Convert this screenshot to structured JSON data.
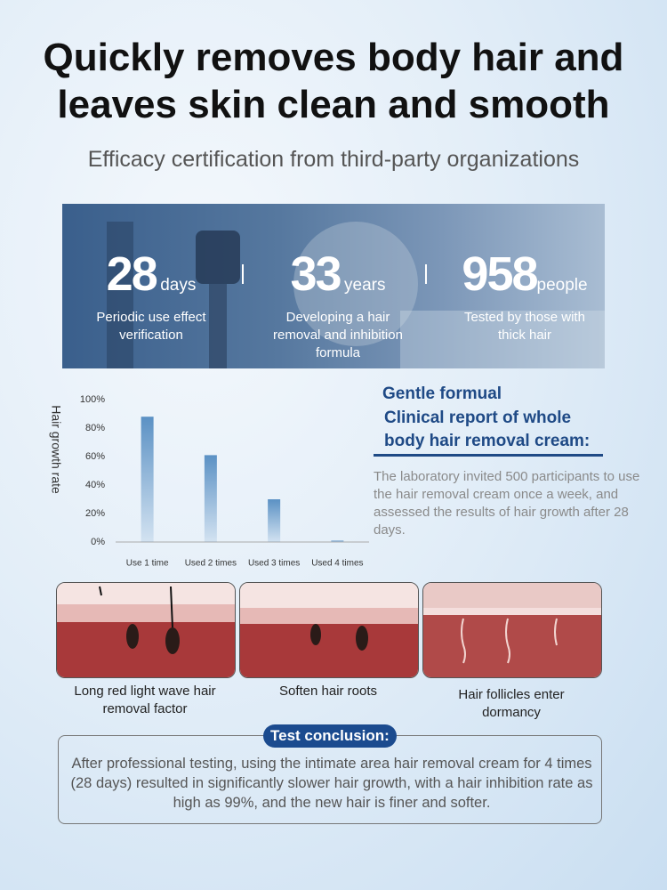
{
  "header": {
    "title": "Quickly removes body hair and leaves skin clean and smooth",
    "subtitle": "Efficacy certification from third-party organizations"
  },
  "stats": [
    {
      "number": 28,
      "unit": "days",
      "label": "Periodic use effect verification"
    },
    {
      "number": 33,
      "unit": "years",
      "label": "Developing a hair removal and inhibition formula"
    },
    {
      "number": 958,
      "unit": "people",
      "label": "Tested by those with thick hair"
    }
  ],
  "chart_data": {
    "type": "bar",
    "y_label": "Hair growth rate",
    "categories": [
      "Use 1 time",
      "Used 2 times",
      "Used 3 times",
      "Used 4 times"
    ],
    "values": [
      88,
      61,
      30,
      1
    ],
    "color": "#5b91c4",
    "ylim": [
      0,
      100
    ],
    "yticks": [
      {
        "value": 0,
        "label": "0%"
      },
      {
        "value": 20,
        "label": "20%"
      },
      {
        "value": 40,
        "label": "40%"
      },
      {
        "value": 60,
        "label": "60%"
      },
      {
        "value": 80,
        "label": "80%"
      },
      {
        "value": 100,
        "label": "100%"
      }
    ]
  },
  "report": {
    "heading_1": "Gentle formual",
    "heading_2": "Clinical report of whole body hair removal cream:",
    "body": "The laboratory invited 500 participants to use the hair removal cream once a week, and assessed the results of hair growth after 28 days."
  },
  "steps": [
    "Long red light wave hair removal factor",
    "Soften hair roots",
    "Hair follicles enter dormancy"
  ],
  "conclusion": {
    "badge": "Test conclusion:",
    "text": "After professional testing, using the intimate area hair removal cream for 4 times (28 days) resulted in significantly slower hair growth, with a hair inhibition rate as high as 99%, and the new hair is finer and softer."
  }
}
